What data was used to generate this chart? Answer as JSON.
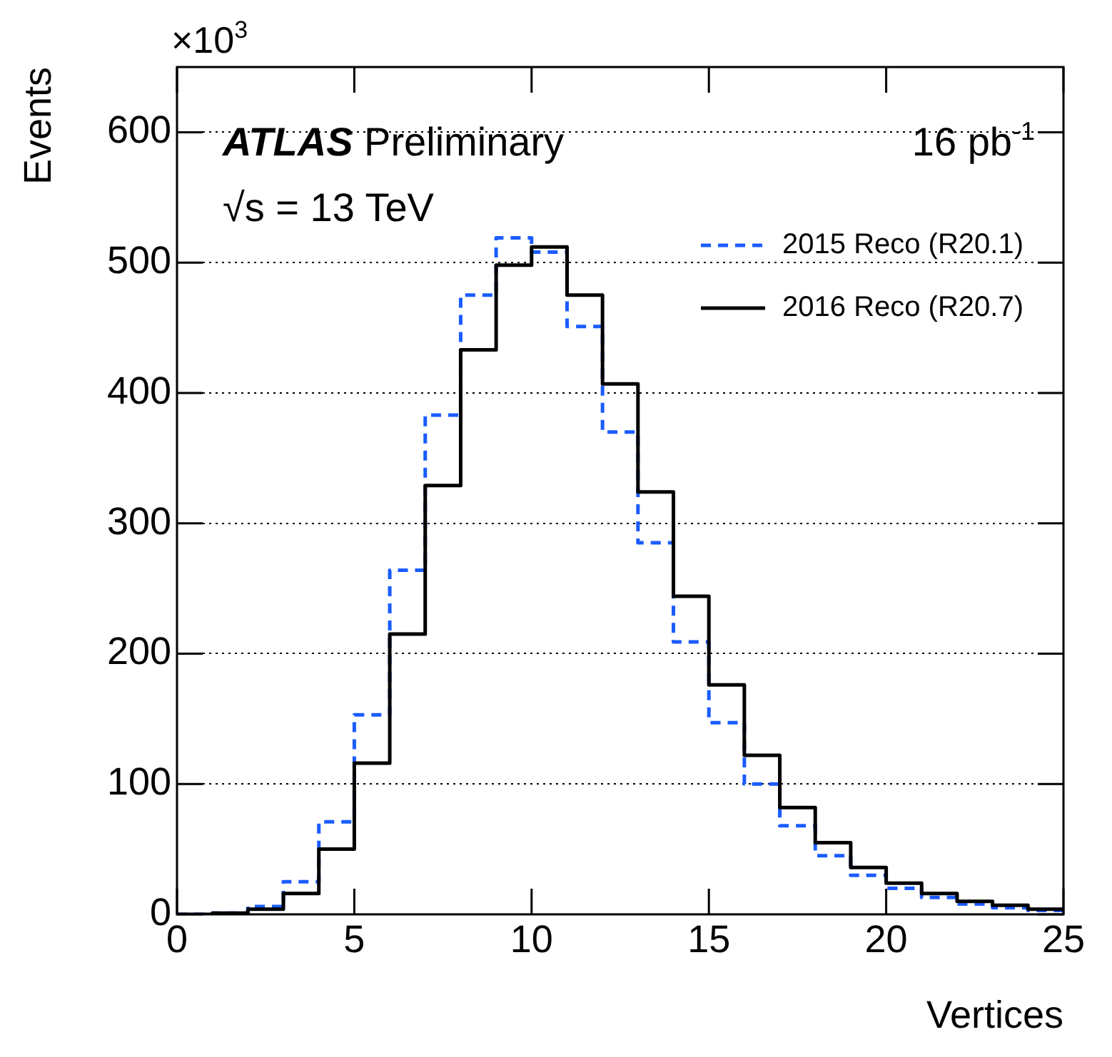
{
  "chart_data": {
    "type": "histogram",
    "xlabel": "Vertices",
    "ylabel": "Events",
    "annotations": [
      "×10$^{3}$",
      "ATLAS Preliminary",
      "16 pb$^{-1}$",
      "√s = 13 TeV"
    ],
    "bins": [
      0,
      1,
      2,
      3,
      4,
      5,
      6,
      7,
      8,
      9,
      10,
      11,
      12,
      13,
      14,
      15,
      16,
      17,
      18,
      19,
      20,
      21,
      22,
      23,
      24,
      25
    ],
    "series": [
      {
        "name": "2015 Reco (R20.1)",
        "color": "#1a5cff",
        "line_style": "dashed",
        "values": [
          0,
          1,
          6,
          25,
          71,
          153,
          264,
          383,
          475,
          519,
          508,
          451,
          370,
          285,
          209,
          147,
          100,
          68,
          45,
          30,
          20,
          13,
          8,
          5,
          3
        ]
      },
      {
        "name": "2016 Reco (R20.7)",
        "color": "#000000",
        "line_style": "solid",
        "values": [
          0,
          1,
          4,
          16,
          50,
          116,
          215,
          329,
          433,
          498,
          512,
          475,
          407,
          324,
          244,
          176,
          122,
          82,
          55,
          36,
          24,
          16,
          10,
          7,
          4
        ]
      }
    ],
    "xlim": [
      0,
      25
    ],
    "xticks": [
      0,
      5,
      10,
      15,
      20,
      25
    ],
    "ylim": [
      0,
      650
    ],
    "yticks": [
      0,
      100,
      200,
      300,
      400,
      500,
      600
    ],
    "grid": "y",
    "legend": "top right"
  }
}
